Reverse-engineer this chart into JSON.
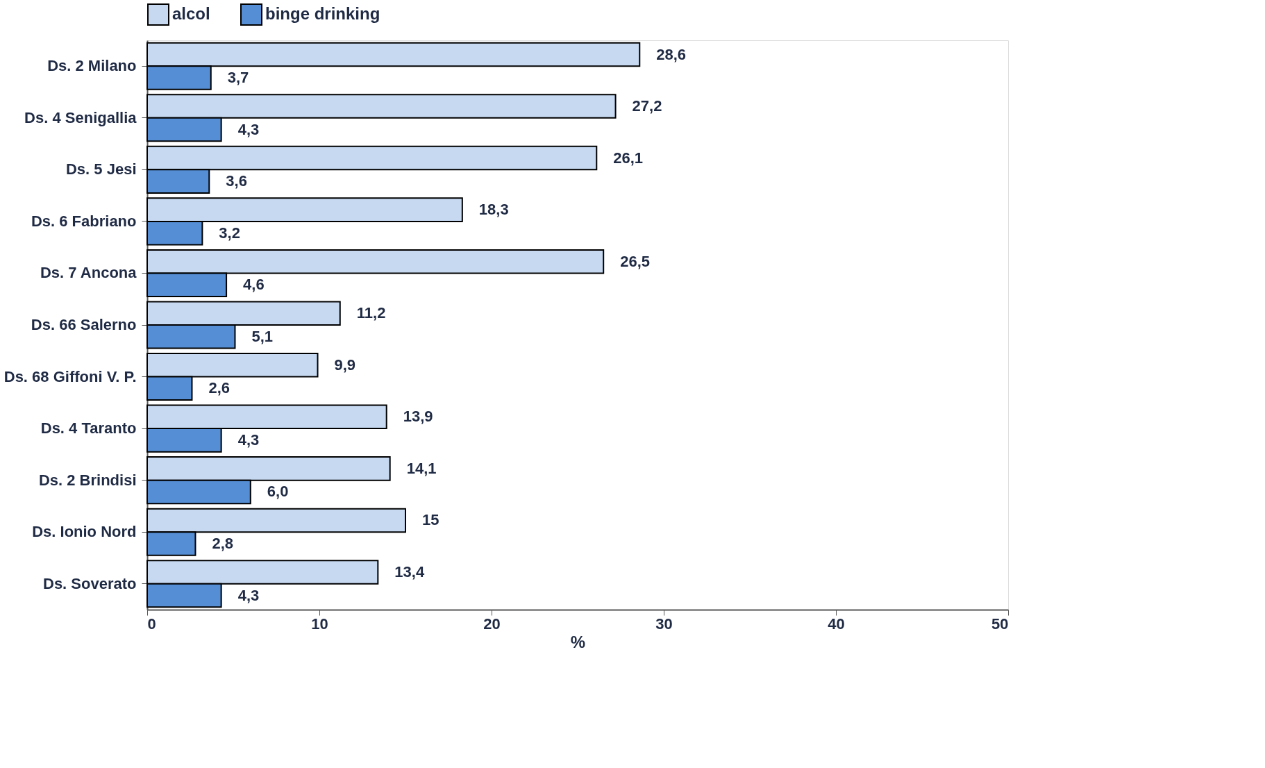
{
  "chart_data": {
    "type": "bar",
    "orientation": "horizontal",
    "xlabel": "%",
    "categories": [
      "Ds. 2 Milano",
      "Ds. 4 Senigallia",
      "Ds. 5 Jesi",
      "Ds. 6 Fabriano",
      "Ds. 7 Ancona",
      "Ds. 66 Salerno",
      "Ds. 68 Giffoni V. P.",
      "Ds. 4 Taranto",
      "Ds. 2 Brindisi",
      "Ds. Ionio Nord",
      "Ds. Soverato"
    ],
    "series": [
      {
        "name": "alcol",
        "color": "#c6d9f1",
        "values": [
          28.6,
          27.2,
          26.1,
          18.3,
          26.5,
          11.2,
          9.9,
          13.9,
          14.1,
          15,
          13.4
        ],
        "value_labels": [
          "28,6",
          "27,2",
          "26,1",
          "18,3",
          "26,5",
          "11,2",
          "9,9",
          "13,9",
          "14,1",
          "15",
          "13,4"
        ]
      },
      {
        "name": "binge drinking",
        "color": "#558ed5",
        "values": [
          3.7,
          4.3,
          3.6,
          3.2,
          4.6,
          5.1,
          2.6,
          4.3,
          6.0,
          2.8,
          4.3
        ],
        "value_labels": [
          "3,7",
          "4,3",
          "3,6",
          "3,2",
          "4,6",
          "5,1",
          "2,6",
          "4,3",
          "6,0",
          "2,8",
          "4,3"
        ]
      }
    ],
    "xlim": [
      0,
      50
    ],
    "xticks": [
      0,
      10,
      20,
      30,
      40,
      50
    ],
    "grid": false,
    "legend": "top"
  }
}
